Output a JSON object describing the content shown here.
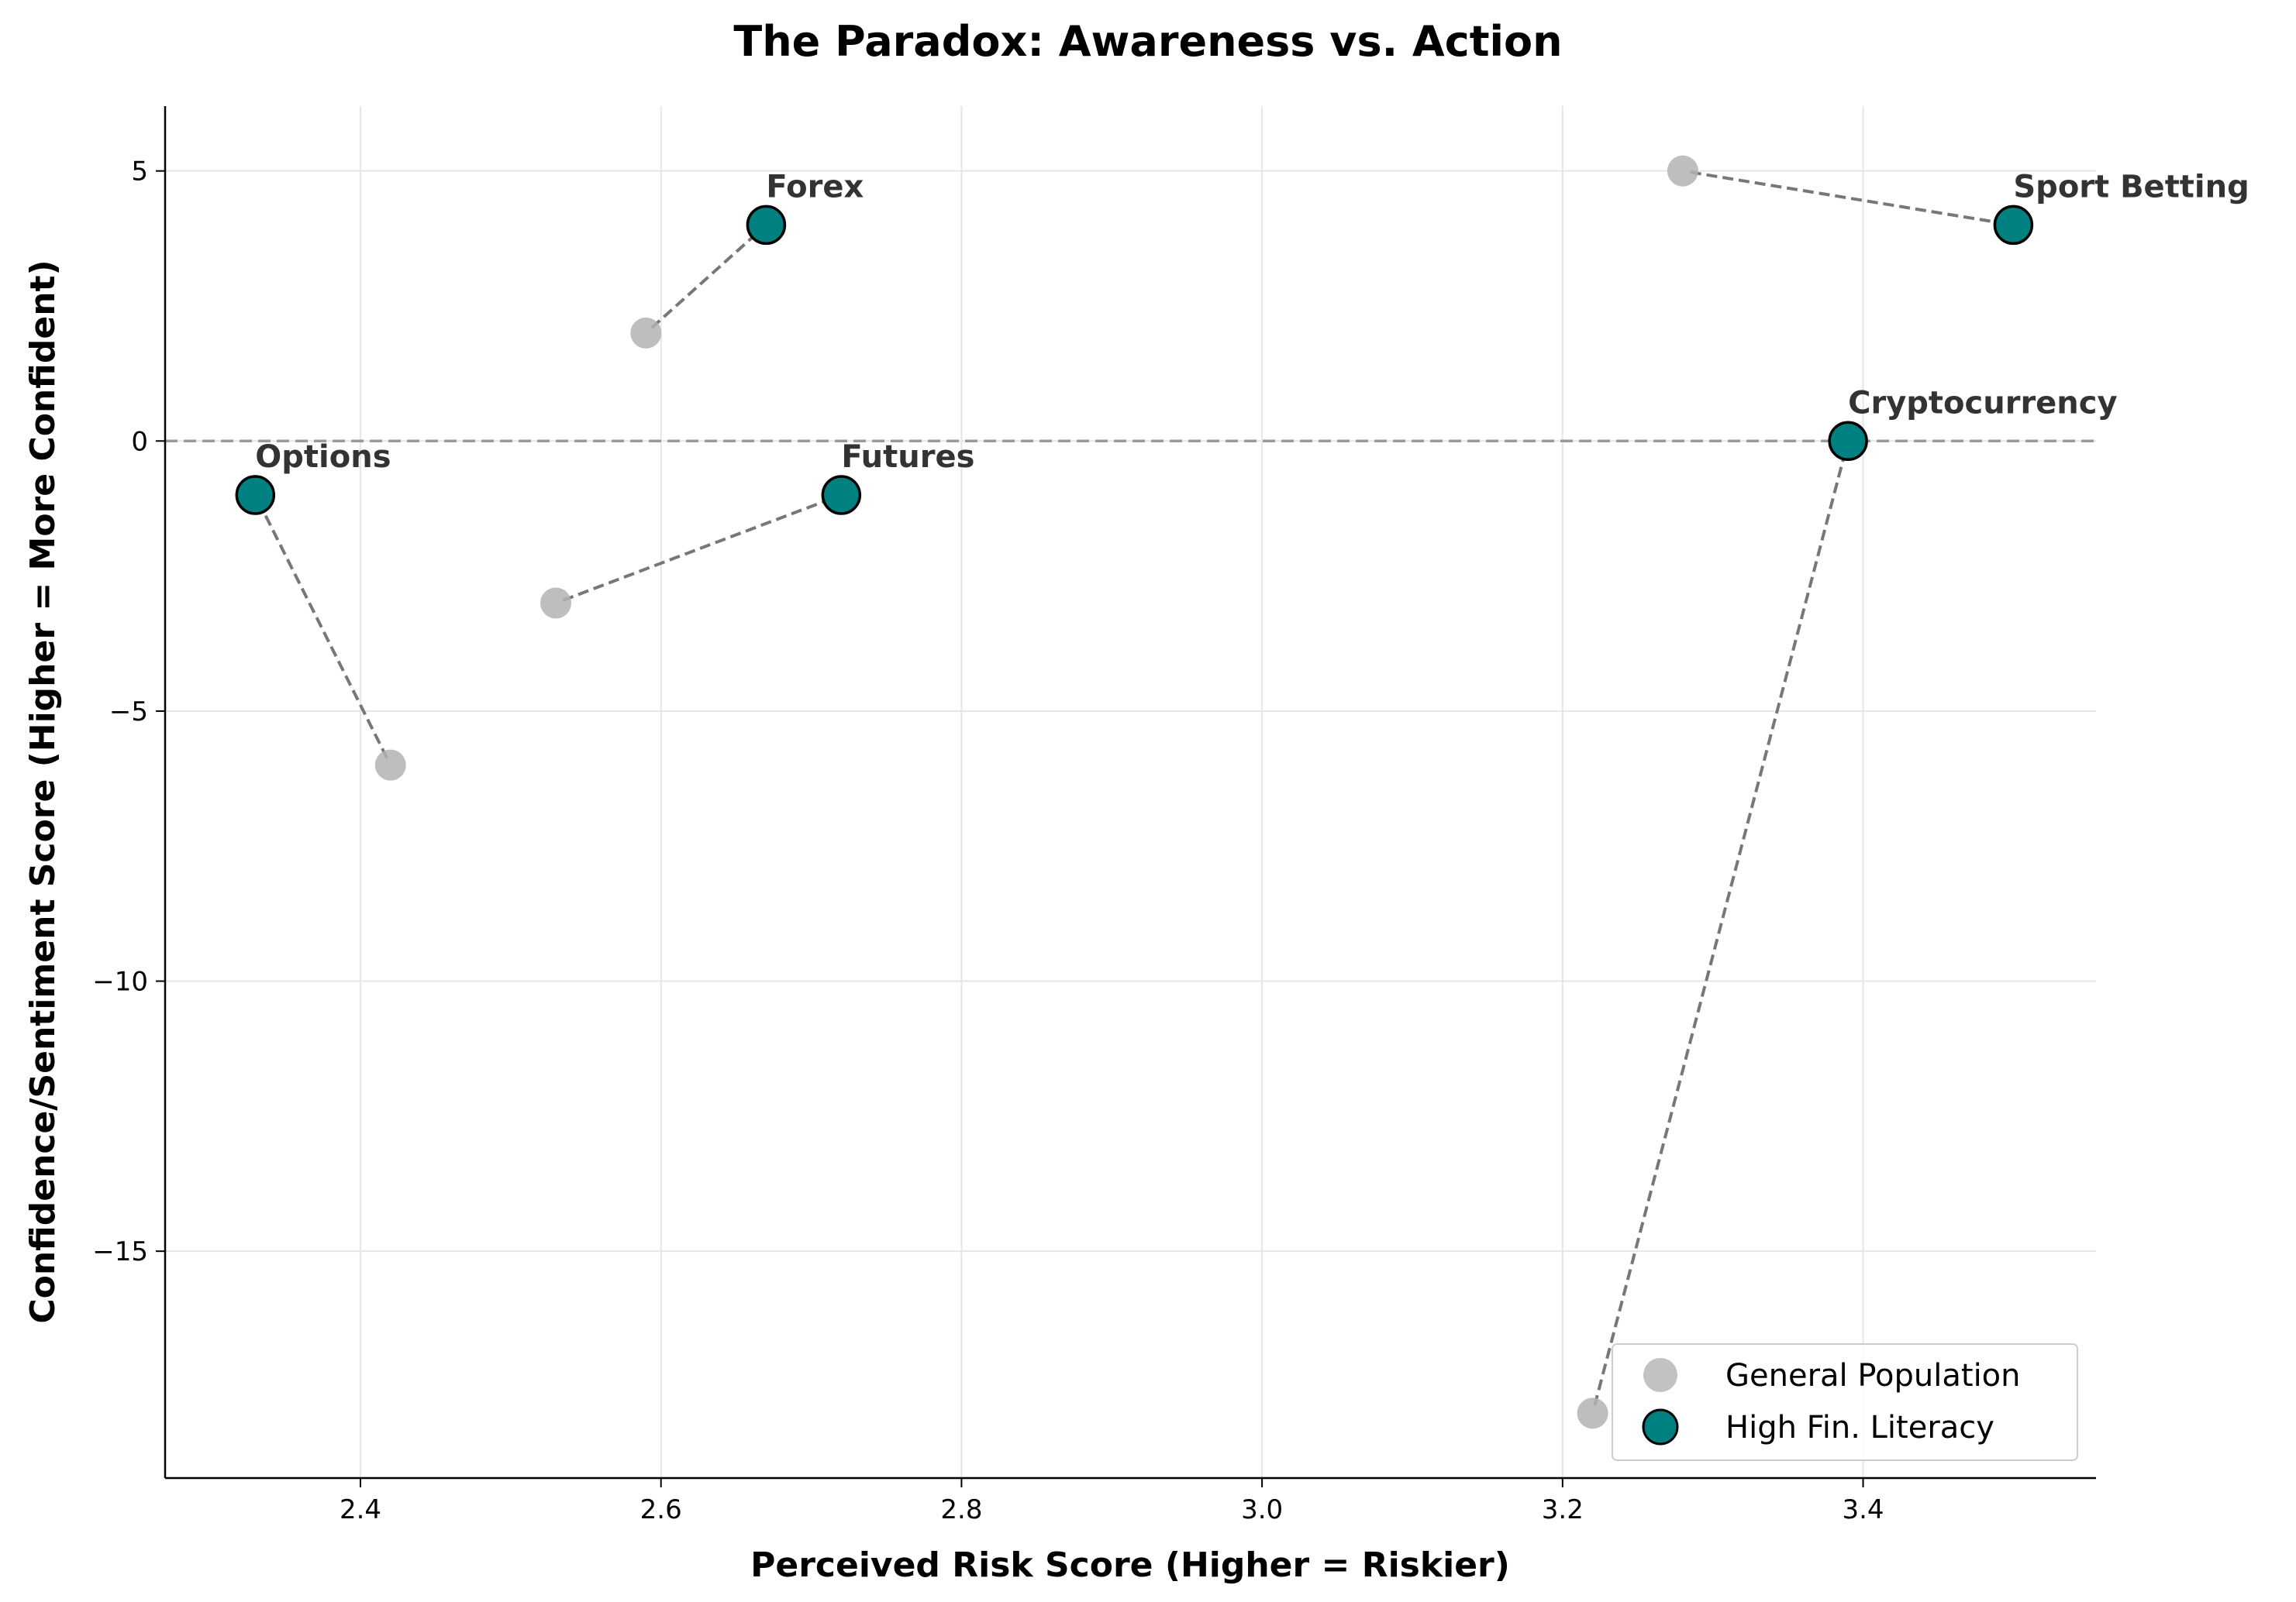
{
  "chart_data": {
    "type": "scatter",
    "title": "The Paradox: Awareness vs. Action",
    "xlabel": "Perceived Risk Score (Higher = Riskier)",
    "ylabel": "Confidence/Sentiment Score (Higher = More Confident)",
    "xlim": [
      2.27,
      3.555
    ],
    "ylim": [
      -19.2,
      6.2
    ],
    "xticks": [
      2.4,
      2.6,
      2.8,
      3.0,
      3.2,
      3.4
    ],
    "xtick_labels": [
      "2.4",
      "2.6",
      "2.8",
      "3.0",
      "3.2",
      "3.4"
    ],
    "yticks": [
      5,
      0,
      -5,
      -10,
      -15
    ],
    "ytick_labels": [
      "5",
      "0",
      "−5",
      "−10",
      "−15"
    ],
    "grid": true,
    "reference_line": {
      "y": 0,
      "style": "dashed"
    },
    "legend": {
      "placement": "lower-right",
      "entries": [
        "General Population",
        "High Fin. Literacy"
      ]
    },
    "colors": {
      "general": "#b3b3b3",
      "literacy": "#008080",
      "literacy_edge": "#000000",
      "arrow": "#777777",
      "grid": "#e6e6e6",
      "reference_line": "#999999"
    },
    "series": [
      {
        "name": "General Population",
        "points": [
          {
            "category": "Options",
            "x": 2.42,
            "y": -6
          },
          {
            "category": "Forex",
            "x": 2.59,
            "y": 2
          },
          {
            "category": "Futures",
            "x": 2.53,
            "y": -3
          },
          {
            "category": "Sport Betting",
            "x": 3.28,
            "y": 5
          },
          {
            "category": "Cryptocurrency",
            "x": 3.22,
            "y": -18
          }
        ]
      },
      {
        "name": "High Fin. Literacy",
        "points": [
          {
            "category": "Options",
            "x": 2.33,
            "y": -1
          },
          {
            "category": "Forex",
            "x": 2.67,
            "y": 4
          },
          {
            "category": "Futures",
            "x": 2.72,
            "y": -1
          },
          {
            "category": "Sport Betting",
            "x": 3.5,
            "y": 4
          },
          {
            "category": "Cryptocurrency",
            "x": 3.39,
            "y": 0
          }
        ]
      }
    ],
    "annotations": [
      "Options",
      "Forex",
      "Futures",
      "Sport Betting",
      "Cryptocurrency"
    ]
  }
}
